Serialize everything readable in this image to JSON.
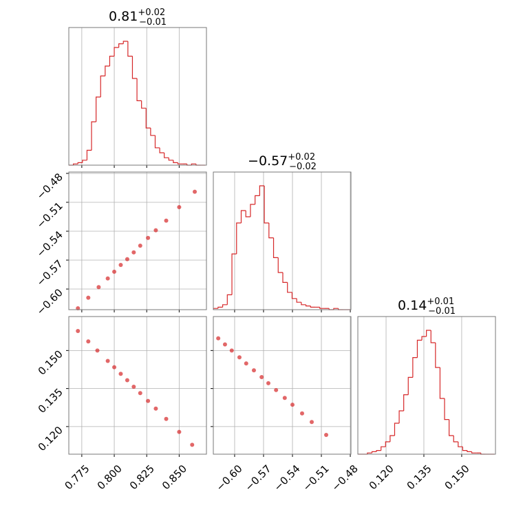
{
  "chart_data": [
    {
      "type": "histogram",
      "color": "#d62728",
      "grid": true,
      "title": {
        "value": "0.81",
        "upper": "+0.02",
        "lower": "−0.01"
      },
      "xlim": [
        0.765,
        0.871
      ],
      "xticks": [
        0.775,
        0.8,
        0.825,
        0.85
      ],
      "bins": [
        0.765,
        0.7685,
        0.772,
        0.7755,
        0.779,
        0.7825,
        0.786,
        0.7895,
        0.793,
        0.7965,
        0.8,
        0.8035,
        0.807,
        0.8105,
        0.814,
        0.8175,
        0.821,
        0.8245,
        0.828,
        0.8315,
        0.835,
        0.8385,
        0.842,
        0.8455,
        0.849,
        0.8525,
        0.856,
        0.8595,
        0.863,
        0.8665,
        0.87
      ],
      "counts": [
        0,
        1,
        2,
        4,
        12,
        35,
        55,
        72,
        80,
        88,
        95,
        98,
        100,
        88,
        70,
        52,
        46,
        30,
        24,
        14,
        10,
        6,
        4,
        2,
        1,
        1,
        0,
        1,
        0,
        0
      ]
    },
    {
      "type": "scatter",
      "color": "#d62728",
      "grid": true,
      "xlim": [
        0.765,
        0.871
      ],
      "xticks": [
        0.775,
        0.8,
        0.825,
        0.85
      ],
      "ylim": [
        -0.6214,
        -0.4786
      ],
      "yticks": [
        {
          "value": -0.48,
          "label": "−0.48"
        },
        {
          "value": -0.51,
          "label": "−0.51"
        },
        {
          "value": -0.54,
          "label": "−0.54"
        },
        {
          "value": -0.57,
          "label": "−0.57"
        },
        {
          "value": -0.6,
          "label": "−0.60"
        }
      ],
      "x": [
        0.772,
        0.78,
        0.788,
        0.795,
        0.8,
        0.805,
        0.81,
        0.815,
        0.82,
        0.826,
        0.832,
        0.84,
        0.85,
        0.862
      ],
      "y": [
        -0.62,
        -0.609,
        -0.598,
        -0.589,
        -0.582,
        -0.575,
        -0.569,
        -0.562,
        -0.555,
        -0.547,
        -0.539,
        -0.529,
        -0.515,
        -0.499
      ]
    },
    {
      "type": "histogram",
      "color": "#d62728",
      "grid": true,
      "title": {
        "value": "−0.57",
        "upper": "+0.02",
        "lower": "−0.02"
      },
      "xlim": [
        -0.6221,
        -0.4793
      ],
      "xticks": [
        -0.6,
        -0.57,
        -0.54,
        -0.51,
        -0.48
      ],
      "bins": [
        -0.622,
        -0.6172,
        -0.6124,
        -0.6076,
        -0.6028,
        -0.598,
        -0.5932,
        -0.5884,
        -0.5836,
        -0.5788,
        -0.574,
        -0.5692,
        -0.5644,
        -0.5596,
        -0.5548,
        -0.55,
        -0.5452,
        -0.5404,
        -0.5356,
        -0.5308,
        -0.526,
        -0.5212,
        -0.5164,
        -0.5116,
        -0.5068,
        -0.502,
        -0.4972,
        -0.4924,
        -0.4876,
        -0.4828,
        -0.48
      ],
      "counts": [
        1,
        2,
        4,
        12,
        45,
        70,
        80,
        75,
        85,
        92,
        100,
        70,
        58,
        42,
        30,
        22,
        14,
        9,
        6,
        4,
        3,
        2,
        2,
        1,
        1,
        0,
        1,
        0,
        0,
        0
      ]
    },
    {
      "type": "scatter",
      "color": "#d62728",
      "grid": true,
      "xlim": [
        0.765,
        0.871
      ],
      "xticks": [
        {
          "value": 0.775,
          "label": "0.775"
        },
        {
          "value": 0.8,
          "label": "0.800"
        },
        {
          "value": 0.825,
          "label": "0.825"
        },
        {
          "value": 0.85,
          "label": "0.850"
        }
      ],
      "ylim": [
        0.1091,
        0.1634
      ],
      "yticks": [
        {
          "value": 0.15,
          "label": "0.150"
        },
        {
          "value": 0.135,
          "label": "0.135"
        },
        {
          "value": 0.12,
          "label": "0.120"
        }
      ],
      "x": [
        0.772,
        0.78,
        0.787,
        0.795,
        0.8,
        0.805,
        0.81,
        0.815,
        0.82,
        0.826,
        0.832,
        0.84,
        0.85,
        0.86
      ],
      "y": [
        0.1577,
        0.1536,
        0.15,
        0.1459,
        0.1434,
        0.1408,
        0.1383,
        0.1357,
        0.1332,
        0.1301,
        0.1271,
        0.123,
        0.1179,
        0.1128
      ]
    },
    {
      "type": "scatter",
      "color": "#d62728",
      "grid": true,
      "xlim": [
        -0.6221,
        -0.4793
      ],
      "xticks": [
        {
          "value": -0.6,
          "label": "−0.60"
        },
        {
          "value": -0.57,
          "label": "−0.57"
        },
        {
          "value": -0.54,
          "label": "−0.54"
        },
        {
          "value": -0.51,
          "label": "−0.51"
        },
        {
          "value": -0.48,
          "label": "−0.48"
        }
      ],
      "ylim": [
        0.1091,
        0.1634
      ],
      "yticks": [
        0.15,
        0.135,
        0.12
      ],
      "x": [
        -0.617,
        -0.61,
        -0.603,
        -0.595,
        -0.588,
        -0.58,
        -0.572,
        -0.565,
        -0.557,
        -0.548,
        -0.54,
        -0.53,
        -0.52,
        -0.505
      ],
      "y": [
        0.1548,
        0.1524,
        0.15,
        0.1473,
        0.1449,
        0.1422,
        0.1395,
        0.1371,
        0.1344,
        0.1313,
        0.1286,
        0.1252,
        0.1218,
        0.1167
      ]
    },
    {
      "type": "histogram",
      "color": "#d62728",
      "grid": true,
      "title": {
        "value": "0.14",
        "upper": "+0.01",
        "lower": "−0.01"
      },
      "xlim": [
        0.1088,
        0.1634
      ],
      "xticks": [
        {
          "value": 0.12,
          "label": "0.120"
        },
        {
          "value": 0.135,
          "label": "0.135"
        },
        {
          "value": 0.15,
          "label": "0.150"
        }
      ],
      "bins": [
        0.109,
        0.1108,
        0.1126,
        0.1144,
        0.1162,
        0.118,
        0.1198,
        0.1216,
        0.1234,
        0.1252,
        0.127,
        0.1288,
        0.1306,
        0.1324,
        0.1342,
        0.136,
        0.1378,
        0.1396,
        0.1414,
        0.1432,
        0.145,
        0.1468,
        0.1486,
        0.1504,
        0.1522,
        0.154,
        0.1558,
        0.1576,
        0.1594,
        0.1612,
        0.163
      ],
      "counts": [
        0,
        0,
        1,
        2,
        3,
        6,
        10,
        15,
        25,
        35,
        48,
        62,
        78,
        92,
        95,
        100,
        90,
        70,
        45,
        28,
        15,
        10,
        6,
        3,
        2,
        1,
        1,
        0,
        0,
        0
      ]
    }
  ]
}
